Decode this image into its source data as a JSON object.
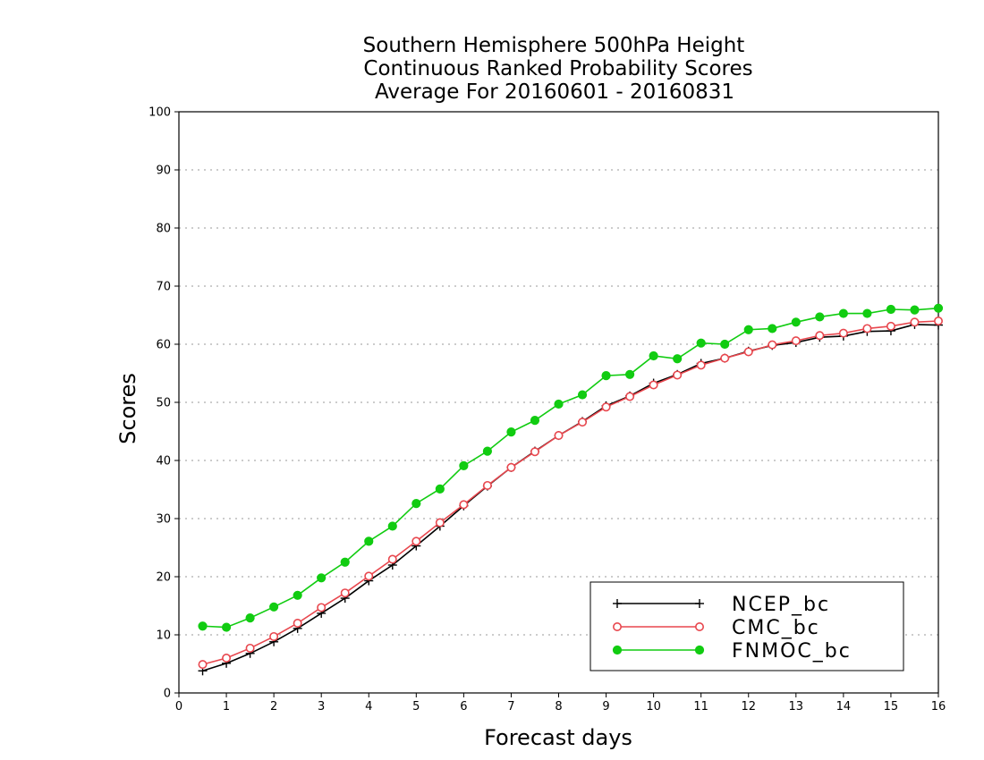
{
  "chart_data": {
    "type": "line",
    "title": [
      "Southern Hemisphere 500hPa Height",
      "Continuous Ranked Probability Scores",
      "Average For 20160601 - 20160831"
    ],
    "xlabel": "Forecast days",
    "ylabel": "Scores",
    "xlim": [
      0,
      16
    ],
    "ylim": [
      0,
      100
    ],
    "xticks": [
      "0",
      "1",
      "2",
      "3",
      "4",
      "5",
      "6",
      "7",
      "8",
      "9",
      "10",
      "11",
      "12",
      "13",
      "14",
      "15",
      "16"
    ],
    "yticks": [
      "0",
      "10",
      "20",
      "30",
      "40",
      "50",
      "60",
      "70",
      "80",
      "90",
      "100"
    ],
    "grid": "horizontal dotted",
    "legend_position": "bottom-right",
    "x": [
      0.5,
      1,
      1.5,
      2,
      2.5,
      3,
      3.5,
      4,
      4.5,
      5,
      5.5,
      6,
      6.5,
      7,
      7.5,
      8,
      8.5,
      9,
      9.5,
      10,
      10.5,
      11,
      11.5,
      12,
      12.5,
      13,
      13.5,
      14,
      14.5,
      15,
      15.5,
      16
    ],
    "series": [
      {
        "name": "NCEP_bc",
        "color": "#000000",
        "marker": "plus",
        "values": [
          3.8,
          5.1,
          6.8,
          8.8,
          11.1,
          13.7,
          16.3,
          19.3,
          22.0,
          25.3,
          28.7,
          32.2,
          35.6,
          38.8,
          41.6,
          44.3,
          46.7,
          49.4,
          51.1,
          53.3,
          54.8,
          56.7,
          57.6,
          58.8,
          59.8,
          60.3,
          61.2,
          61.4,
          62.2,
          62.3,
          63.4,
          63.3
        ]
      },
      {
        "name": "CMC_bc",
        "color": "#e8474e",
        "marker": "open-circle",
        "values": [
          4.9,
          6.0,
          7.7,
          9.7,
          12.0,
          14.7,
          17.2,
          20.1,
          23.0,
          26.1,
          29.3,
          32.4,
          35.7,
          38.8,
          41.5,
          44.3,
          46.6,
          49.2,
          51.0,
          53.0,
          54.7,
          56.4,
          57.6,
          58.7,
          59.9,
          60.6,
          61.5,
          61.9,
          62.7,
          63.1,
          63.8,
          64.0
        ]
      },
      {
        "name": "FNMOC_bc",
        "color": "#11cc11",
        "marker": "filled-circle",
        "values": [
          11.5,
          11.3,
          12.9,
          14.8,
          16.8,
          19.8,
          22.5,
          26.1,
          28.7,
          32.6,
          35.1,
          39.1,
          41.6,
          44.9,
          46.9,
          49.7,
          51.3,
          54.6,
          54.8,
          58.0,
          57.5,
          60.2,
          60.0,
          62.5,
          62.7,
          63.8,
          64.7,
          65.3,
          65.3,
          66.0,
          65.9,
          66.2
        ]
      }
    ]
  }
}
